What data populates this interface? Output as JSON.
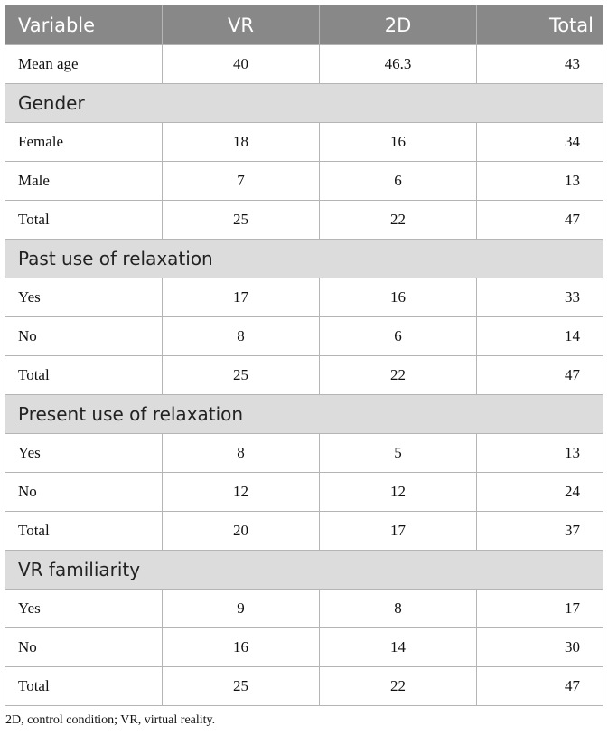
{
  "header": {
    "variable": "Variable",
    "vr": "VR",
    "twod": "2D",
    "total": "Total"
  },
  "sections": [
    {
      "title": null,
      "rows": [
        {
          "label": "Mean age",
          "vr": "40",
          "twod": "46.3",
          "total": "43"
        }
      ]
    },
    {
      "title": "Gender",
      "rows": [
        {
          "label": "Female",
          "vr": "18",
          "twod": "16",
          "total": "34"
        },
        {
          "label": "Male",
          "vr": "7",
          "twod": "6",
          "total": "13"
        },
        {
          "label": "Total",
          "vr": "25",
          "twod": "22",
          "total": "47"
        }
      ]
    },
    {
      "title": "Past use of relaxation",
      "rows": [
        {
          "label": "Yes",
          "vr": "17",
          "twod": "16",
          "total": "33"
        },
        {
          "label": "No",
          "vr": "8",
          "twod": "6",
          "total": "14"
        },
        {
          "label": "Total",
          "vr": "25",
          "twod": "22",
          "total": "47"
        }
      ]
    },
    {
      "title": "Present use of relaxation",
      "rows": [
        {
          "label": "Yes",
          "vr": "8",
          "twod": "5",
          "total": "13"
        },
        {
          "label": "No",
          "vr": "12",
          "twod": "12",
          "total": "24"
        },
        {
          "label": "Total",
          "vr": "20",
          "twod": "17",
          "total": "37"
        }
      ]
    },
    {
      "title": "VR familiarity",
      "rows": [
        {
          "label": "Yes",
          "vr": "9",
          "twod": "8",
          "total": "17"
        },
        {
          "label": "No",
          "vr": "16",
          "twod": "14",
          "total": "30"
        },
        {
          "label": "Total",
          "vr": "25",
          "twod": "22",
          "total": "47"
        }
      ]
    }
  ],
  "footnote": "2D, control condition; VR, virtual reality.",
  "colors": {
    "header_bg": "#888888",
    "section_bg": "#dcdcdc",
    "border": "#b5b5b5"
  }
}
